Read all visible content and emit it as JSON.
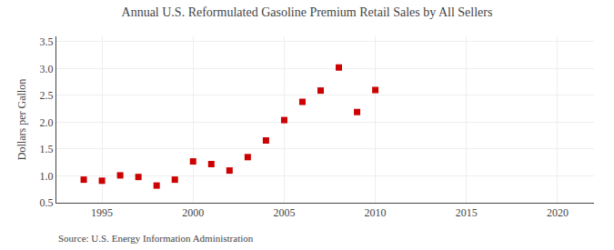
{
  "chart_data": {
    "type": "scatter",
    "title": "Annual U.S. Reformulated Gasoline Premium Retail Sales by All Sellers",
    "ylabel": "Dollars per Gallon",
    "annotations": [
      "Source: U.S. Energy Information Administration"
    ],
    "x": [
      1994,
      1995,
      1996,
      1997,
      1998,
      1999,
      2000,
      2001,
      2002,
      2003,
      2004,
      2005,
      2006,
      2007,
      2008,
      2009,
      2010
    ],
    "values": [
      0.93,
      0.91,
      1.01,
      0.98,
      0.82,
      0.93,
      1.27,
      1.22,
      1.1,
      1.35,
      1.66,
      2.04,
      2.38,
      2.59,
      3.02,
      2.19,
      2.6
    ],
    "color": "#cc0000",
    "marker": "square",
    "xlim": [
      1992.5,
      2022
    ],
    "ylim": [
      0.5,
      3.6
    ],
    "xticks": [
      1995,
      2000,
      2005,
      2010,
      2015,
      2020
    ],
    "yticks": [
      0.5,
      {
        "value": 1.0,
        "label": "1.0"
      },
      1.5,
      {
        "value": 2.0,
        "label": "2.0"
      },
      2.5,
      {
        "value": 3.0,
        "label": "3.0"
      },
      3.5
    ],
    "grid": true
  }
}
